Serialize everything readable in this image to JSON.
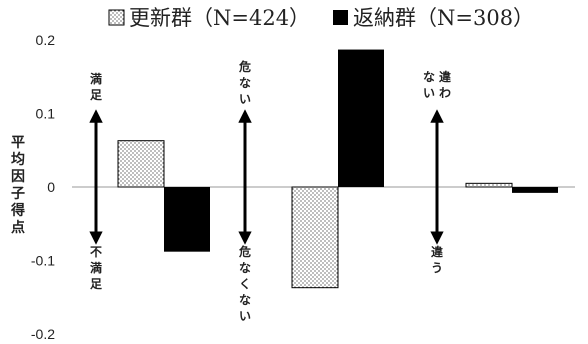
{
  "chart_data": {
    "type": "bar",
    "ylabel": "平均因子得点",
    "ylim": [
      -0.2,
      0.2
    ],
    "yticks": [
      "0.2",
      "0.1",
      "0",
      "-0.1",
      "-0.2"
    ],
    "ytick_values": [
      0.2,
      0.1,
      0,
      -0.1,
      -0.2
    ],
    "grid": false,
    "legend_position": "top",
    "series": [
      {
        "name": "更新群（N=424）",
        "pattern": "dotted",
        "color": "#ffffff",
        "values": [
          0.063,
          -0.137,
          0.005
        ]
      },
      {
        "name": "返納群（N=308）",
        "pattern": "solid",
        "color": "#000000",
        "values": [
          -0.088,
          0.187,
          -0.008
        ]
      }
    ],
    "factors": [
      {
        "top_label": "満足",
        "bottom_label": "不満足"
      },
      {
        "top_label": "危ない",
        "bottom_label": "危なくない"
      },
      {
        "top_label": "違わない",
        "bottom_label": "違う"
      }
    ]
  }
}
